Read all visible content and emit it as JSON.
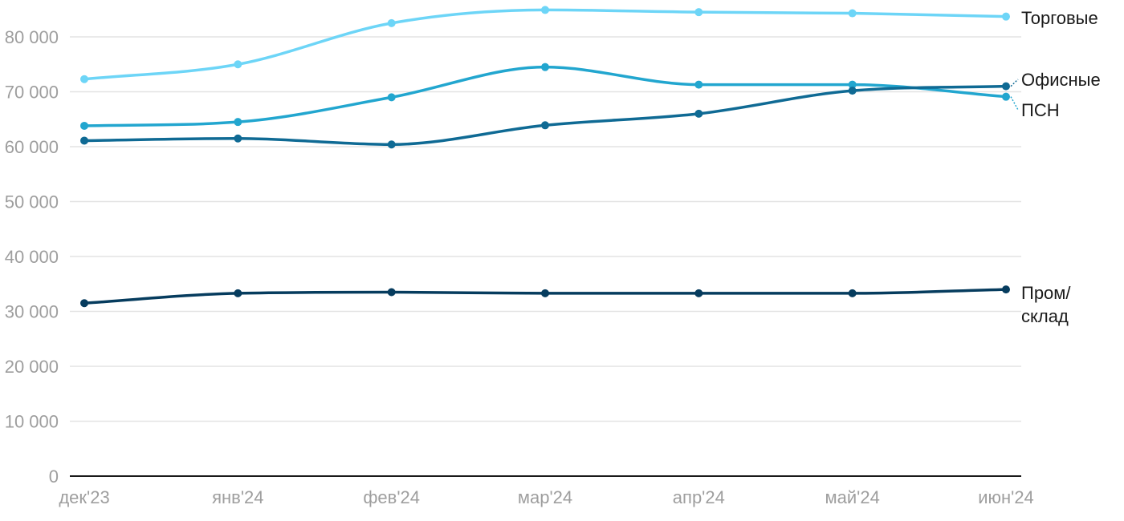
{
  "chart_data": {
    "type": "line",
    "categories": [
      "дек'23",
      "янв'24",
      "фев'24",
      "мар'24",
      "апр'24",
      "май'24",
      "июн'24"
    ],
    "series": [
      {
        "name": "Торговые",
        "color": "#6dd5f7",
        "values": [
          72300,
          75000,
          82500,
          84900,
          84500,
          84300,
          83700
        ]
      },
      {
        "name": "ПСН",
        "color": "#22a6cf",
        "values": [
          63800,
          64500,
          69000,
          74500,
          71300,
          71300,
          69100
        ]
      },
      {
        "name": "Офисные",
        "color": "#0f6a94",
        "values": [
          61100,
          61500,
          60400,
          63900,
          66000,
          70200,
          71000
        ]
      },
      {
        "name": "Пром/склад",
        "label_lines": [
          "Пром/",
          "склад"
        ],
        "color": "#063c5e",
        "values": [
          31500,
          33300,
          33500,
          33300,
          33300,
          33300,
          34000
        ]
      }
    ],
    "y_ticks": [
      "0",
      "10 000",
      "20 000",
      "30 000",
      "40 000",
      "50 000",
      "60 000",
      "70 000",
      "80 000"
    ],
    "ylim": [
      0,
      85000
    ],
    "grid": true,
    "legend": "end-of-line labels on the right"
  }
}
